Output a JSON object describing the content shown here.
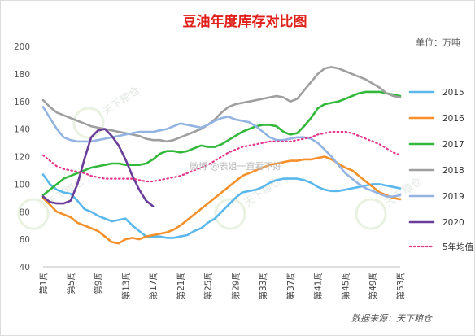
{
  "chart_data": {
    "type": "line",
    "title": "豆油年度库存对比图",
    "unit": "单位：万吨",
    "xlabel": "",
    "ylabel": "",
    "ylim": [
      40,
      200
    ],
    "yticks": [
      40,
      60,
      80,
      100,
      120,
      140,
      160,
      180,
      200
    ],
    "x_range": [
      1,
      53
    ],
    "grid": false,
    "legend_position": "right",
    "x_ticks": [
      {
        "week": 1,
        "label": "第1周"
      },
      {
        "week": 5,
        "label": "第5周"
      },
      {
        "week": 9,
        "label": "第9周"
      },
      {
        "week": 13,
        "label": "第13周"
      },
      {
        "week": 17,
        "label": "第17周"
      },
      {
        "week": 21,
        "label": "第21周"
      },
      {
        "week": 25,
        "label": "第25周"
      },
      {
        "week": 29,
        "label": "第29周"
      },
      {
        "week": 33,
        "label": "第33周"
      },
      {
        "week": 37,
        "label": "第37周"
      },
      {
        "week": 41,
        "label": "第41周"
      },
      {
        "week": 45,
        "label": "第45周"
      },
      {
        "week": 49,
        "label": "第49周"
      },
      {
        "week": 53,
        "label": "第53周"
      }
    ],
    "series": [
      {
        "name": "2015",
        "color": "#5bb8ec",
        "dash": false,
        "x_start": 1,
        "values": [
          107,
          100,
          96,
          94,
          93,
          88,
          82,
          80,
          77,
          75,
          73,
          74,
          75,
          70,
          66,
          62,
          62,
          62,
          61,
          61,
          62,
          63,
          66,
          68,
          72,
          75,
          80,
          85,
          90,
          94,
          95,
          96,
          98,
          101,
          103,
          104,
          104,
          104,
          103,
          101,
          98,
          96,
          95,
          95,
          96,
          97,
          98,
          99,
          100,
          100,
          99,
          98,
          97
        ]
      },
      {
        "name": "2016",
        "color": "#f5902b",
        "dash": false,
        "x_start": 1,
        "values": [
          90,
          85,
          80,
          78,
          76,
          72,
          70,
          68,
          66,
          62,
          58,
          57,
          60,
          61,
          60,
          62,
          63,
          64,
          65,
          67,
          70,
          74,
          78,
          82,
          86,
          90,
          94,
          98,
          102,
          106,
          108,
          110,
          112,
          114,
          115,
          116,
          117,
          117,
          118,
          118,
          119,
          120,
          118,
          115,
          112,
          110,
          106,
          102,
          98,
          94,
          92,
          90,
          89
        ]
      },
      {
        "name": "2017",
        "color": "#32b83b",
        "dash": false,
        "x_start": 1,
        "values": [
          92,
          96,
          100,
          104,
          106,
          108,
          110,
          112,
          113,
          114,
          115,
          115,
          114,
          114,
          114,
          115,
          118,
          122,
          124,
          124,
          123,
          124,
          126,
          128,
          127,
          127,
          129,
          132,
          135,
          138,
          140,
          142,
          143,
          143,
          142,
          138,
          136,
          137,
          142,
          148,
          155,
          158,
          159,
          160,
          162,
          164,
          166,
          167,
          167,
          167,
          166,
          165,
          164
        ]
      },
      {
        "name": "2018",
        "color": "#9f9f9f",
        "dash": false,
        "x_start": 1,
        "values": [
          161,
          156,
          152,
          150,
          148,
          146,
          144,
          142,
          141,
          140,
          139,
          138,
          137,
          136,
          135,
          133,
          132,
          132,
          131,
          132,
          134,
          136,
          138,
          140,
          143,
          147,
          152,
          156,
          158,
          159,
          160,
          161,
          162,
          163,
          164,
          163,
          160,
          162,
          168,
          174,
          180,
          184,
          185,
          184,
          182,
          180,
          178,
          176,
          173,
          170,
          166,
          164,
          163
        ]
      },
      {
        "name": "2019",
        "color": "#93b4e2",
        "dash": false,
        "x_start": 1,
        "values": [
          156,
          148,
          140,
          134,
          132,
          131,
          131,
          131,
          132,
          133,
          134,
          135,
          136,
          137,
          138,
          138,
          138,
          139,
          140,
          142,
          144,
          143,
          142,
          141,
          143,
          146,
          148,
          149,
          147,
          146,
          145,
          142,
          138,
          134,
          132,
          132,
          133,
          134,
          134,
          133,
          130,
          125,
          120,
          114,
          108,
          104,
          100,
          97,
          95,
          93,
          91,
          91,
          92
        ]
      },
      {
        "name": "2020",
        "color": "#6a3d9a",
        "dash": false,
        "x_start": 1,
        "values": [
          91,
          87,
          86,
          86,
          88,
          100,
          118,
          134,
          139,
          140,
          135,
          128,
          118,
          106,
          96,
          88,
          84
        ]
      },
      {
        "name": "5年均值",
        "color": "#e5348c",
        "dash": true,
        "x_start": 1,
        "values": [
          121,
          117,
          113,
          111,
          110,
          109,
          108,
          106,
          105,
          104,
          104,
          104,
          104,
          104,
          103,
          102,
          102,
          103,
          104,
          105,
          106,
          108,
          110,
          112,
          114,
          117,
          120,
          123,
          125,
          127,
          128,
          129,
          130,
          131,
          131,
          131,
          131,
          132,
          133,
          134,
          136,
          137,
          138,
          138,
          138,
          137,
          135,
          133,
          131,
          129,
          126,
          123,
          121
        ]
      }
    ],
    "source": "数据来源：天下粮仓"
  },
  "watermark": {
    "brand": "天下粮仓",
    "credit": "微博 @表姐一直看不好"
  }
}
